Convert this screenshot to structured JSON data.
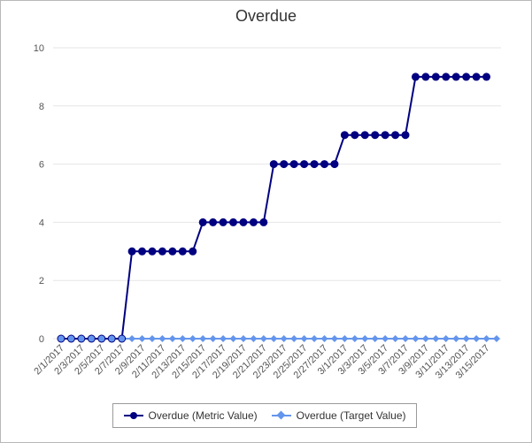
{
  "colors": {
    "metric": "#000080",
    "target": "#6495ed",
    "grid": "#e6e6e6",
    "axis_text": "#555555"
  },
  "chart_data": {
    "type": "line",
    "title": "Overdue",
    "xlabel": "",
    "ylabel": "",
    "ylim": [
      0,
      10
    ],
    "yticks": [
      0,
      2,
      4,
      6,
      8,
      10
    ],
    "grid": true,
    "legend_position": "bottom",
    "x": [
      "2/1/2017",
      "2/2/2017",
      "2/3/2017",
      "2/4/2017",
      "2/5/2017",
      "2/6/2017",
      "2/7/2017",
      "2/8/2017",
      "2/9/2017",
      "2/10/2017",
      "2/11/2017",
      "2/12/2017",
      "2/13/2017",
      "2/14/2017",
      "2/15/2017",
      "2/16/2017",
      "2/17/2017",
      "2/18/2017",
      "2/19/2017",
      "2/20/2017",
      "2/21/2017",
      "2/22/2017",
      "2/23/2017",
      "2/24/2017",
      "2/25/2017",
      "2/26/2017",
      "2/27/2017",
      "2/28/2017",
      "3/1/2017",
      "3/2/2017",
      "3/3/2017",
      "3/4/2017",
      "3/5/2017",
      "3/6/2017",
      "3/7/2017",
      "3/8/2017",
      "3/9/2017",
      "3/10/2017",
      "3/11/2017",
      "3/12/2017",
      "3/13/2017",
      "3/14/2017",
      "3/15/2017",
      "3/16/2017"
    ],
    "xtick_labels": [
      "2/1/2017",
      "2/3/2017",
      "2/5/2017",
      "2/7/2017",
      "2/9/2017",
      "2/11/2017",
      "2/13/2017",
      "2/15/2017",
      "2/17/2017",
      "2/19/2017",
      "2/21/2017",
      "2/23/2017",
      "2/25/2017",
      "2/27/2017",
      "3/1/2017",
      "3/3/2017",
      "3/5/2017",
      "3/7/2017",
      "3/9/2017",
      "3/11/2017",
      "3/13/2017",
      "3/15/2017"
    ],
    "series": [
      {
        "name": "Overdue (Metric Value)",
        "marker": "circle",
        "values": [
          0,
          0,
          0,
          0,
          0,
          0,
          0,
          3,
          3,
          3,
          3,
          3,
          3,
          3,
          4,
          4,
          4,
          4,
          4,
          4,
          4,
          6,
          6,
          6,
          6,
          6,
          6,
          6,
          7,
          7,
          7,
          7,
          7,
          7,
          7,
          9,
          9,
          9,
          9,
          9,
          9,
          9,
          9,
          null
        ],
        "empty_marker_until_index": 6
      },
      {
        "name": "Overdue (Target Value)",
        "marker": "diamond",
        "values": [
          0,
          0,
          0,
          0,
          0,
          0,
          0,
          0,
          0,
          0,
          0,
          0,
          0,
          0,
          0,
          0,
          0,
          0,
          0,
          0,
          0,
          0,
          0,
          0,
          0,
          0,
          0,
          0,
          0,
          0,
          0,
          0,
          0,
          0,
          0,
          0,
          0,
          0,
          0,
          0,
          0,
          0,
          0,
          0
        ]
      }
    ]
  }
}
